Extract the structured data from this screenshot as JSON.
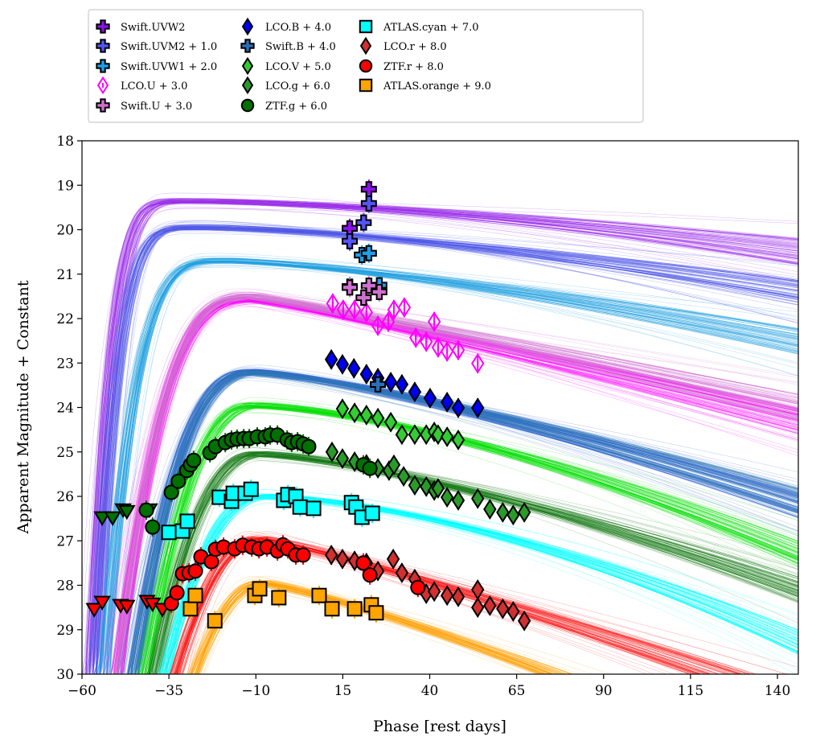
{
  "chart_data": {
    "type": "scatter",
    "xlabel": "Phase [rest days]",
    "ylabel": "Apparent Magnitude + Constant",
    "xlim": [
      -60,
      146
    ],
    "ylim": [
      30,
      18
    ],
    "y_inverted": true,
    "xticks": [
      -60,
      -35,
      -10,
      15,
      40,
      65,
      90,
      115,
      140
    ],
    "yticks": [
      18,
      19,
      20,
      21,
      22,
      23,
      24,
      25,
      26,
      27,
      28,
      29,
      30
    ],
    "grid": false,
    "legend": {
      "placement": "top (above plot)",
      "columns": 3
    },
    "series": [
      {
        "name": "Swift.UVW2",
        "color": "#8c10e8",
        "marker": "plus",
        "filled": true,
        "points": [
          [
            17.0,
            19.97
          ],
          [
            22.5,
            19.09
          ]
        ],
        "model": {
          "color": "#9a2be8",
          "rise_start": -58,
          "peak_phase": -28,
          "peak_mag": 19.35,
          "end_mag": 20.5,
          "rise_index": 5,
          "decline_index": 1.6
        }
      },
      {
        "name": "Swift.UVM2 + 1.0",
        "color": "#5555f5",
        "marker": "plus",
        "filled": true,
        "points": [
          [
            17.0,
            20.26
          ],
          [
            22.5,
            19.41
          ],
          [
            21.0,
            19.84
          ]
        ],
        "model": {
          "color": "#4b55e6",
          "rise_start": -57,
          "peak_phase": -25,
          "peak_mag": 19.95,
          "end_mag": 21.4,
          "rise_index": 5,
          "decline_index": 1.5
        }
      },
      {
        "name": "Swift.UVW1 + 2.0",
        "color": "#1ea0ea",
        "marker": "plus",
        "filled": true,
        "points": [
          [
            20.5,
            20.57
          ],
          [
            22.5,
            20.53
          ],
          [
            17.0,
            21.28
          ],
          [
            25.5,
            21.25
          ]
        ],
        "model": {
          "color": "#1fa0e0",
          "rise_start": -55,
          "peak_phase": -18,
          "peak_mag": 20.7,
          "end_mag": 22.5,
          "rise_index": 4,
          "decline_index": 1.4
        }
      },
      {
        "name": "LCO.U + 3.0",
        "color": "#ff00ff",
        "marker": "diamond",
        "filled": false,
        "points": [
          [
            12.1,
            21.66
          ],
          [
            15.1,
            21.8
          ],
          [
            18.4,
            21.8
          ],
          [
            21.8,
            21.86
          ],
          [
            25.1,
            22.16
          ],
          [
            28.1,
            22.07
          ],
          [
            29.7,
            21.8
          ],
          [
            32.7,
            21.75
          ],
          [
            36.0,
            22.43
          ],
          [
            39.0,
            22.52
          ],
          [
            41.3,
            22.07
          ],
          [
            42.4,
            22.65
          ],
          [
            45.0,
            22.74
          ],
          [
            48.2,
            22.71
          ],
          [
            53.8,
            23.01
          ]
        ],
        "model": {
          "color": "#ff00ff",
          "rise_start": -52,
          "peak_phase": -11,
          "peak_mag": 21.58,
          "end_mag": 24.3,
          "rise_index": 3,
          "decline_index": 1.1
        }
      },
      {
        "name": "Swift.U + 3.0",
        "color": "#d070d0",
        "marker": "plus",
        "filled": true,
        "points": [
          [
            17.0,
            21.3
          ],
          [
            22.5,
            21.26
          ],
          [
            21.0,
            21.53
          ],
          [
            25.5,
            21.4
          ]
        ],
        "model": {
          "color": "#d070d0",
          "rise_start": -52,
          "peak_phase": -11,
          "peak_mag": 21.5,
          "end_mag": 24.0,
          "rise_index": 3,
          "decline_index": 1.1
        }
      },
      {
        "name": "LCO.B + 4.0",
        "color": "#0000ee",
        "marker": "diamond",
        "filled": true,
        "points": [
          [
            11.7,
            22.92
          ],
          [
            14.9,
            23.03
          ],
          [
            18.2,
            23.12
          ],
          [
            21.8,
            23.25
          ],
          [
            25.1,
            23.34
          ],
          [
            28.8,
            23.43
          ],
          [
            32.0,
            23.48
          ],
          [
            35.7,
            23.65
          ],
          [
            40.1,
            23.79
          ],
          [
            45.0,
            23.88
          ],
          [
            48.2,
            24.01
          ],
          [
            53.8,
            24.01
          ]
        ],
        "model": {
          "color": "#2a5cd8",
          "rise_start": -48,
          "peak_phase": -10,
          "peak_mag": 23.2,
          "end_mag": 26.2,
          "rise_index": 2.6,
          "decline_index": 1.3
        }
      },
      {
        "name": "Swift.B + 4.0",
        "color": "#2a70b8",
        "marker": "plus",
        "filled": true,
        "points": [
          [
            25.1,
            23.48
          ]
        ],
        "model": {
          "color": "#2f78b8",
          "rise_start": -48,
          "peak_phase": -10,
          "peak_mag": 23.22,
          "end_mag": 26.1,
          "rise_index": 2.6,
          "decline_index": 1.3
        }
      },
      {
        "name": "LCO.V + 5.0",
        "color": "#33cc33",
        "marker": "diamond",
        "filled": true,
        "points": [
          [
            14.9,
            24.03
          ],
          [
            18.4,
            24.12
          ],
          [
            21.8,
            24.17
          ],
          [
            25.1,
            24.24
          ],
          [
            28.8,
            24.33
          ],
          [
            32.0,
            24.61
          ],
          [
            35.7,
            24.61
          ],
          [
            39.0,
            24.61
          ],
          [
            41.3,
            24.55
          ],
          [
            42.4,
            24.61
          ],
          [
            45.0,
            24.66
          ],
          [
            48.2,
            24.73
          ]
        ],
        "model": {
          "color": "#00e000",
          "rise_start": -45,
          "peak_phase": -10,
          "peak_mag": 23.95,
          "end_mag": 27.3,
          "rise_index": 2.4,
          "decline_index": 1.5
        }
      },
      {
        "name": "LCO.g + 6.0",
        "color": "#2a9a2a",
        "marker": "diamond",
        "filled": true,
        "points": [
          [
            11.9,
            25.0
          ],
          [
            14.9,
            25.15
          ],
          [
            18.4,
            25.22
          ],
          [
            21.8,
            25.28
          ],
          [
            25.1,
            25.37
          ],
          [
            28.3,
            25.42
          ],
          [
            29.7,
            25.29
          ],
          [
            32.5,
            25.55
          ],
          [
            35.7,
            25.75
          ],
          [
            39.0,
            25.78
          ],
          [
            41.3,
            25.87
          ],
          [
            42.4,
            25.82
          ],
          [
            45.0,
            26.02
          ],
          [
            48.2,
            26.09
          ],
          [
            53.8,
            26.05
          ],
          [
            57.3,
            26.29
          ],
          [
            61.0,
            26.36
          ],
          [
            64.0,
            26.42
          ],
          [
            67.2,
            26.36
          ]
        ],
        "model": {
          "color": "#127812",
          "rise_start": -43,
          "peak_phase": -9,
          "peak_mag": 25.05,
          "end_mag": 28.1,
          "rise_index": 2.3,
          "decline_index": 1.4
        }
      },
      {
        "name": "ZTF.g + 6.0",
        "color": "#007000",
        "marker": "circle",
        "filled": true,
        "points": [
          [
            -41.5,
            26.31
          ],
          [
            -39.7,
            26.69
          ],
          [
            -34.3,
            25.91
          ],
          [
            -32.3,
            25.66
          ],
          [
            -29.9,
            25.42
          ],
          [
            -28.8,
            25.29
          ],
          [
            -27.9,
            25.19
          ],
          [
            -23.2,
            25.02
          ],
          [
            -21.6,
            24.88
          ],
          [
            -18.8,
            24.79
          ],
          [
            -17.0,
            24.73
          ],
          [
            -15.4,
            24.71
          ],
          [
            -13.5,
            24.7
          ],
          [
            -11.9,
            24.7
          ],
          [
            -9.6,
            24.66
          ],
          [
            -7.3,
            24.66
          ],
          [
            -5.9,
            24.62
          ],
          [
            -3.8,
            24.62
          ],
          [
            -1.0,
            24.73
          ],
          [
            0.3,
            24.79
          ],
          [
            2.0,
            24.77
          ],
          [
            3.6,
            24.82
          ],
          [
            5.2,
            24.88
          ],
          [
            20.9,
            25.29
          ],
          [
            22.8,
            25.37
          ]
        ],
        "upper_limits": [
          [
            -54.2,
            26.47
          ],
          [
            -51.2,
            26.47
          ],
          [
            -48.2,
            26.29
          ],
          [
            -47.1,
            26.33
          ],
          [
            -40.6,
            26.29
          ]
        ]
      },
      {
        "name": "ATLAS.cyan + 7.0",
        "color": "#00ffff",
        "marker": "square",
        "filled": true,
        "points": [
          [
            -35.0,
            26.81
          ],
          [
            -31.1,
            26.78
          ],
          [
            -29.7,
            26.56
          ],
          [
            -20.5,
            26.02
          ],
          [
            -17.0,
            26.11
          ],
          [
            -16.5,
            25.93
          ],
          [
            -13.1,
            25.93
          ],
          [
            -11.4,
            25.84
          ],
          [
            -2.0,
            26.09
          ],
          [
            -0.8,
            25.96
          ],
          [
            1.5,
            26.0
          ],
          [
            2.7,
            26.24
          ],
          [
            6.6,
            26.27
          ],
          [
            17.5,
            26.14
          ],
          [
            18.8,
            26.24
          ],
          [
            20.5,
            26.47
          ],
          [
            23.5,
            26.38
          ]
        ],
        "model": {
          "color": "#00ffff",
          "rise_start": -41,
          "peak_phase": -8,
          "peak_mag": 26.0,
          "end_mag": 29.3,
          "rise_index": 2.2,
          "decline_index": 1.6
        }
      },
      {
        "name": "LCO.r + 8.0",
        "color": "#d03030",
        "marker": "diamond",
        "filled": true,
        "points": [
          [
            11.7,
            27.32
          ],
          [
            14.9,
            27.41
          ],
          [
            18.4,
            27.45
          ],
          [
            21.8,
            27.5
          ],
          [
            25.1,
            27.68
          ],
          [
            29.5,
            27.41
          ],
          [
            32.0,
            27.72
          ],
          [
            35.7,
            27.86
          ],
          [
            39.0,
            28.19
          ],
          [
            41.3,
            28.14
          ],
          [
            45.0,
            28.23
          ],
          [
            48.2,
            28.26
          ],
          [
            53.8,
            28.1
          ],
          [
            53.8,
            28.5
          ],
          [
            57.3,
            28.46
          ],
          [
            61.0,
            28.53
          ],
          [
            64.0,
            28.59
          ],
          [
            67.2,
            28.8
          ]
        ],
        "model": {
          "color": "#ff1010",
          "rise_start": -38,
          "peak_phase": -9,
          "peak_mag": 26.95,
          "end_mag": 30.6,
          "rise_index": 2.1,
          "decline_index": 1.15
        }
      },
      {
        "name": "ZTF.r + 8.0",
        "color": "#ff0000",
        "marker": "circle",
        "filled": true,
        "points": [
          [
            -34.3,
            28.41
          ],
          [
            -32.7,
            28.17
          ],
          [
            -31.1,
            27.74
          ],
          [
            -29.2,
            27.72
          ],
          [
            -27.4,
            27.68
          ],
          [
            -25.8,
            27.36
          ],
          [
            -22.8,
            27.47
          ],
          [
            -21.6,
            27.19
          ],
          [
            -19.3,
            27.14
          ],
          [
            -16.1,
            27.18
          ],
          [
            -13.8,
            27.1
          ],
          [
            -11.2,
            27.14
          ],
          [
            -9.1,
            27.18
          ],
          [
            -6.8,
            27.14
          ],
          [
            -3.8,
            27.23
          ],
          [
            -2.2,
            27.09
          ],
          [
            -0.8,
            27.18
          ],
          [
            1.5,
            27.32
          ],
          [
            3.6,
            27.32
          ],
          [
            20.9,
            27.5
          ],
          [
            22.8,
            27.77
          ],
          [
            36.6,
            28.05
          ]
        ],
        "upper_limits": [
          [
            -56.5,
            28.53
          ],
          [
            -54.2,
            28.37
          ],
          [
            -48.9,
            28.44
          ],
          [
            -47.1,
            28.46
          ],
          [
            -41.3,
            28.35
          ],
          [
            -39.7,
            28.41
          ],
          [
            -36.9,
            28.53
          ]
        ]
      },
      {
        "name": "ATLAS.orange + 9.0",
        "color": "#ffa500",
        "marker": "square",
        "filled": true,
        "points": [
          [
            -28.8,
            28.53
          ],
          [
            -27.4,
            28.23
          ],
          [
            -21.8,
            28.8
          ],
          [
            -10.3,
            28.23
          ],
          [
            -8.9,
            28.08
          ],
          [
            -3.4,
            28.28
          ],
          [
            8.2,
            28.23
          ],
          [
            11.9,
            28.53
          ],
          [
            18.4,
            28.53
          ],
          [
            23.2,
            28.44
          ],
          [
            24.6,
            28.62
          ]
        ],
        "model": {
          "color": "#ffa000",
          "rise_start": -34,
          "peak_phase": -8,
          "peak_mag": 27.95,
          "end_mag": 32.2,
          "rise_index": 2.0,
          "decline_index": 1.2
        }
      }
    ]
  }
}
